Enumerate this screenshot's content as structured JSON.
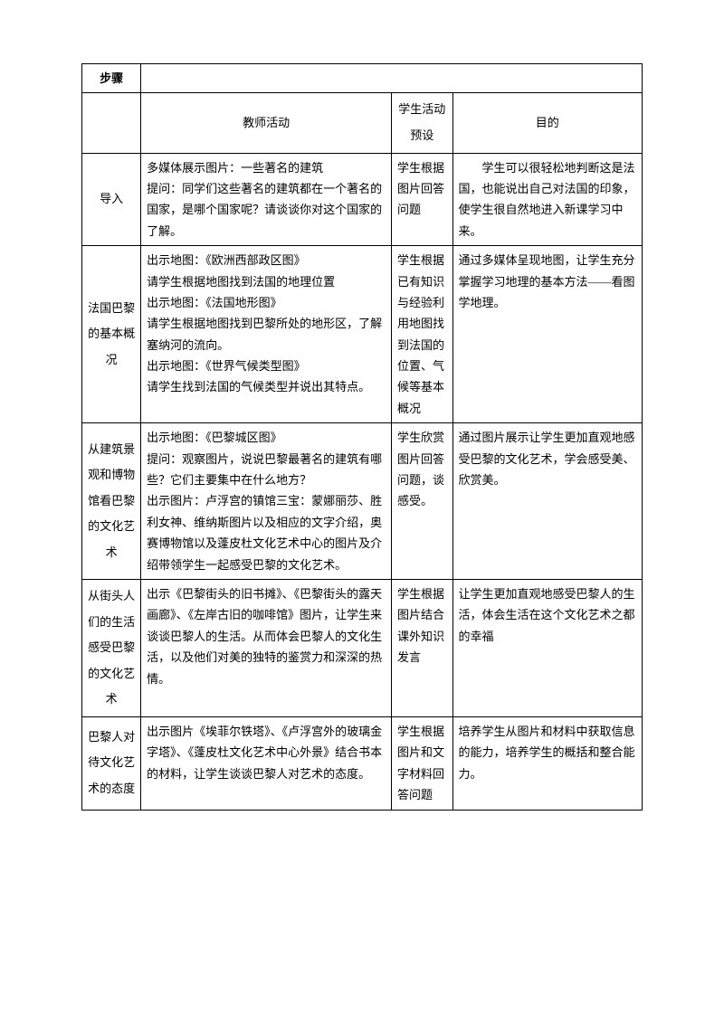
{
  "table": {
    "header": {
      "steps": "步骤",
      "teacher": "教师活动",
      "student": "学生活动预设",
      "purpose": "目的"
    },
    "rows": [
      {
        "step": "导入",
        "teacher": "多媒体展示图片：一些著名的建筑\n提问：同学们这些著名的建筑都在一个著名的国家，是哪个国家呢？请谈谈你对这个国家的了解。",
        "student": "学生根据图片回答问题",
        "purpose": "　　学生可以很轻松地判断这是法国，也能说出自己对法国的印象，使学生很自然地进入新课学习中来。"
      },
      {
        "step": "法国巴黎的基本概况",
        "teacher": "出示地图：《欧洲西部政区图》\n请学生根据地图找到法国的地理位置\n出示地图：《法国地形图》\n请学生根据地图找到巴黎所处的地形区，了解塞纳河的流向。\n出示地图：《世界气候类型图》\n请学生找到法国的气候类型并说出其特点。",
        "student": "学生根据已有知识与经验利用地图找到法国的位置、气候等基本概况",
        "purpose": "通过多媒体呈现地图，让学生充分掌握学习地理的基本方法——看图学地理。"
      },
      {
        "step": "从建筑景观和博物馆看巴黎的文化艺术",
        "teacher": "出示地图：《巴黎城区图》\n提问：观察图片，说说巴黎最著名的建筑有哪些？它们主要集中在什么地方？\n出示图片：卢浮宫的镇馆三宝：蒙娜丽莎、胜利女神、维纳斯图片以及相应的文字介绍，奥赛博物馆以及蓬皮杜文化艺术中心的图片及介绍带领学生一起感受巴黎的文化艺术。",
        "student": "学生欣赏图片回答问题，谈感受。",
        "purpose": "通过图片展示让学生更加直观地感受巴黎的文化艺术，学会感受美、欣赏美。"
      },
      {
        "step": "从街头人们的生活感受巴黎的文化艺术",
        "teacher": "出示《巴黎街头的旧书摊》、《巴黎街头的露天画廊》、《左岸古旧的咖啡馆》图片，让学生来谈谈巴黎人的生活。从而体会巴黎人的文化生活，以及他们对美的独特的鉴赏力和深深的热情。",
        "student": "学生根据图片结合课外知识发言",
        "purpose": "让学生更加直观地感受巴黎人的生活，体会生活在这个文化艺术之都的幸福"
      },
      {
        "step": "巴黎人对待文化艺术的态度",
        "teacher": "出示图片《埃菲尔铁塔》、《卢浮宫外的玻璃金字塔》、《蓬皮杜文化艺术中心外景》结合书本的材料，让学生谈谈巴黎人对艺术的态度。",
        "student": "学生根据图片和文字材料回答问题",
        "purpose": "培养学生从图片和材料中获取信息的能力，培养学生的概括和整合能力。"
      }
    ]
  }
}
